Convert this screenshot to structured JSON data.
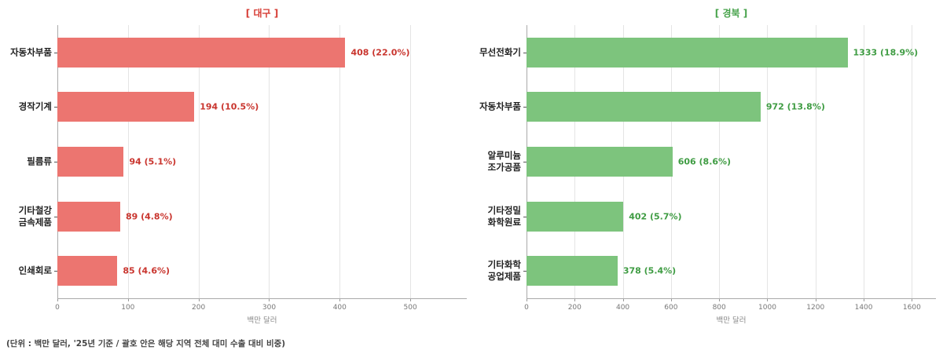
{
  "chart_data": [
    {
      "type": "barh",
      "title": "[ 대구 ]",
      "title_color": "#d63b33",
      "categories": [
        "자동차부품",
        "경작기계",
        "필름류",
        "기타철강\n금속제품",
        "인쇄회로"
      ],
      "values": [
        408,
        194,
        94,
        89,
        85
      ],
      "value_labels": [
        "408 (22.0%)",
        "194 (10.5%)",
        "94 (5.1%)",
        "89 (4.8%)",
        "85 (4.6%)"
      ],
      "color": "#ec7570",
      "label_color": "#c9352e",
      "xlabel": "백만 달러",
      "xlim": [
        0,
        580
      ],
      "xticks": [
        0,
        100,
        200,
        300,
        400,
        500
      ],
      "grid": true
    },
    {
      "type": "barh",
      "title": "[ 경북 ]",
      "title_color": "#46a24a",
      "categories": [
        "무선전화기",
        "자동차부품",
        "알루미늄\n조가공품",
        "기타정밀\n화학원료",
        "기타화학\n공업제품"
      ],
      "values": [
        1333,
        972,
        606,
        402,
        378
      ],
      "value_labels": [
        "1333 (18.9%)",
        "972 (13.8%)",
        "606 (8.6%)",
        "402 (5.7%)",
        "378 (5.4%)"
      ],
      "color": "#7dc47d",
      "label_color": "#3f9c43",
      "xlabel": "백만 달러",
      "xlim": [
        0,
        1700
      ],
      "xticks": [
        0,
        200,
        400,
        600,
        800,
        1000,
        1200,
        1400,
        1600
      ],
      "grid": true
    }
  ],
  "footnote": "(단위 : 백만 달러, '25년 기준 / 괄호 안은 해당 지역 전체 대미 수출 대비 비중)"
}
